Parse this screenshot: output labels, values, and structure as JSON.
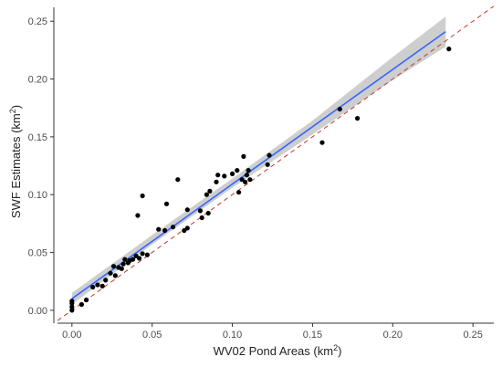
{
  "chart_data": {
    "type": "scatter",
    "title": "",
    "xlabel": {
      "prefix": "WV02 Pond Areas (km",
      "sup": "2",
      "suffix": ")"
    },
    "ylabel": {
      "prefix": "SWF Estimates (km",
      "sup": "2",
      "suffix": ")"
    },
    "xlim": [
      -0.009,
      0.263
    ],
    "ylim": [
      -0.008,
      0.262
    ],
    "x_ticks": [
      0.0,
      0.05,
      0.1,
      0.15,
      0.2,
      0.25
    ],
    "x_tick_labels": [
      "0.00",
      "0.05",
      "0.10",
      "0.15",
      "0.20",
      "0.25"
    ],
    "y_ticks": [
      0.0,
      0.05,
      0.1,
      0.15,
      0.2,
      0.25
    ],
    "y_tick_labels": [
      "0.00",
      "0.05",
      "0.10",
      "0.15",
      "0.20",
      "0.25"
    ],
    "grid": false,
    "legend": "none",
    "colors": {
      "points": "#000000",
      "fit_line": "#3366ff",
      "confidence_band": "#bdbdbd",
      "identity_line": "#c0392b",
      "axis": "#333333"
    },
    "points": [
      {
        "x": 0.0,
        "y": 0.0
      },
      {
        "x": 0.0,
        "y": 0.003
      },
      {
        "x": 0.0,
        "y": 0.006
      },
      {
        "x": 0.0,
        "y": 0.008
      },
      {
        "x": 0.006,
        "y": 0.005
      },
      {
        "x": 0.009,
        "y": 0.009
      },
      {
        "x": 0.013,
        "y": 0.02
      },
      {
        "x": 0.016,
        "y": 0.022
      },
      {
        "x": 0.019,
        "y": 0.021
      },
      {
        "x": 0.021,
        "y": 0.026
      },
      {
        "x": 0.024,
        "y": 0.032
      },
      {
        "x": 0.026,
        "y": 0.038
      },
      {
        "x": 0.027,
        "y": 0.03
      },
      {
        "x": 0.029,
        "y": 0.037
      },
      {
        "x": 0.031,
        "y": 0.036
      },
      {
        "x": 0.032,
        "y": 0.04
      },
      {
        "x": 0.033,
        "y": 0.044
      },
      {
        "x": 0.035,
        "y": 0.041
      },
      {
        "x": 0.036,
        "y": 0.043
      },
      {
        "x": 0.038,
        "y": 0.044
      },
      {
        "x": 0.04,
        "y": 0.047
      },
      {
        "x": 0.041,
        "y": 0.082
      },
      {
        "x": 0.042,
        "y": 0.045
      },
      {
        "x": 0.044,
        "y": 0.049
      },
      {
        "x": 0.044,
        "y": 0.099
      },
      {
        "x": 0.047,
        "y": 0.048
      },
      {
        "x": 0.054,
        "y": 0.07
      },
      {
        "x": 0.058,
        "y": 0.069
      },
      {
        "x": 0.059,
        "y": 0.092
      },
      {
        "x": 0.063,
        "y": 0.072
      },
      {
        "x": 0.066,
        "y": 0.113
      },
      {
        "x": 0.07,
        "y": 0.069
      },
      {
        "x": 0.072,
        "y": 0.071
      },
      {
        "x": 0.072,
        "y": 0.087
      },
      {
        "x": 0.08,
        "y": 0.086
      },
      {
        "x": 0.081,
        "y": 0.08
      },
      {
        "x": 0.084,
        "y": 0.1
      },
      {
        "x": 0.085,
        "y": 0.084
      },
      {
        "x": 0.086,
        "y": 0.103
      },
      {
        "x": 0.09,
        "y": 0.111
      },
      {
        "x": 0.091,
        "y": 0.117
      },
      {
        "x": 0.095,
        "y": 0.116
      },
      {
        "x": 0.1,
        "y": 0.118
      },
      {
        "x": 0.103,
        "y": 0.121
      },
      {
        "x": 0.104,
        "y": 0.102
      },
      {
        "x": 0.106,
        "y": 0.113
      },
      {
        "x": 0.107,
        "y": 0.133
      },
      {
        "x": 0.108,
        "y": 0.111
      },
      {
        "x": 0.109,
        "y": 0.117
      },
      {
        "x": 0.11,
        "y": 0.121
      },
      {
        "x": 0.111,
        "y": 0.113
      },
      {
        "x": 0.122,
        "y": 0.126
      },
      {
        "x": 0.123,
        "y": 0.134
      },
      {
        "x": 0.156,
        "y": 0.145
      },
      {
        "x": 0.167,
        "y": 0.174
      },
      {
        "x": 0.178,
        "y": 0.166
      },
      {
        "x": 0.235,
        "y": 0.226
      }
    ],
    "fit_line": {
      "x": [
        0.0,
        0.233
      ],
      "y": [
        0.01,
        0.241
      ]
    },
    "confidence_band": {
      "x": [
        0.0,
        0.05,
        0.1,
        0.15,
        0.2,
        0.233
      ],
      "lower": [
        0.005,
        0.057,
        0.106,
        0.152,
        0.199,
        0.228
      ],
      "upper": [
        0.015,
        0.065,
        0.114,
        0.164,
        0.219,
        0.254
      ]
    },
    "identity_line": {
      "x": [
        -0.009,
        0.263
      ],
      "y": [
        -0.009,
        0.263
      ]
    }
  }
}
